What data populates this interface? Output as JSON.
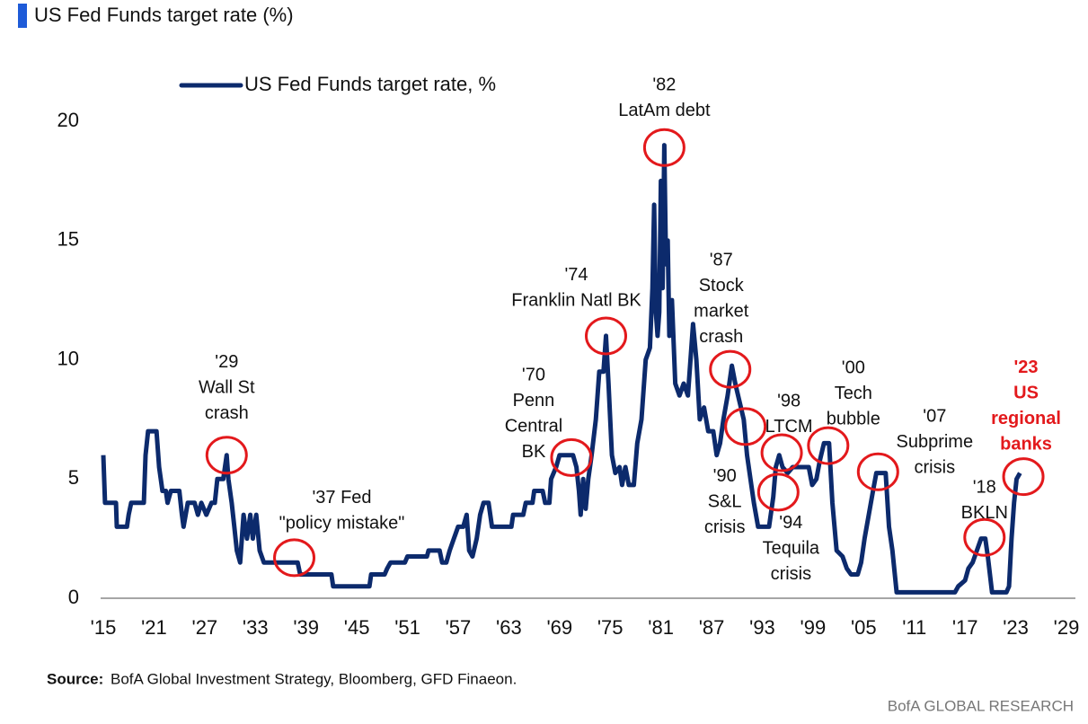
{
  "title": "US Fed Funds target rate (%)",
  "source_label": "Source:",
  "source": "BofA Global Investment Strategy, Bloomberg, GFD Finaeon.",
  "footer": "BofA GLOBAL RESEARCH",
  "chart_data": {
    "type": "line",
    "xlim": [
      1915,
      2029
    ],
    "ylim": [
      0,
      20
    ],
    "yticks": [
      0,
      5,
      10,
      15,
      20
    ],
    "xticks": [
      {
        "value": 1915,
        "label": "'15"
      },
      {
        "value": 1921,
        "label": "'21"
      },
      {
        "value": 1927,
        "label": "'27"
      },
      {
        "value": 1933,
        "label": "'33"
      },
      {
        "value": 1939,
        "label": "'39"
      },
      {
        "value": 1945,
        "label": "'45"
      },
      {
        "value": 1951,
        "label": "'51"
      },
      {
        "value": 1957,
        "label": "'57"
      },
      {
        "value": 1963,
        "label": "'63"
      },
      {
        "value": 1969,
        "label": "'69"
      },
      {
        "value": 1975,
        "label": "'75"
      },
      {
        "value": 1981,
        "label": "'81"
      },
      {
        "value": 1987,
        "label": "'87"
      },
      {
        "value": 1993,
        "label": "'93"
      },
      {
        "value": 1999,
        "label": "'99"
      },
      {
        "value": 2005,
        "label": "'05"
      },
      {
        "value": 2011,
        "label": "'11"
      },
      {
        "value": 2017,
        "label": "'17"
      },
      {
        "value": 2023,
        "label": "'23"
      },
      {
        "value": 2029,
        "label": "'29"
      }
    ],
    "x": [
      1915,
      1915.2,
      1916.5,
      1916.6,
      1917.8,
      1918,
      1918.3,
      1919.8,
      1920,
      1920.3,
      1921.3,
      1921.6,
      1922,
      1922.4,
      1922.6,
      1923,
      1924,
      1924.3,
      1924.5,
      1925,
      1925.8,
      1926.2,
      1926.6,
      1927.2,
      1927.8,
      1928.2,
      1928.5,
      1929.2,
      1929.6,
      1929.8,
      1930.2,
      1930.5,
      1930.8,
      1931.2,
      1931.6,
      1932,
      1932.4,
      1932.7,
      1933.1,
      1933.5,
      1934,
      1938,
      1938.3,
      1942,
      1942.2,
      1946.5,
      1946.7,
      1948.3,
      1948.6,
      1949,
      1950.7,
      1951,
      1953.3,
      1953.5,
      1954.8,
      1955.1,
      1955.6,
      1956,
      1956.5,
      1957,
      1957.6,
      1958,
      1958.3,
      1958.7,
      1959.2,
      1959.6,
      1960,
      1960.6,
      1961,
      1963.3,
      1963.5,
      1964.7,
      1965,
      1965.8,
      1966,
      1967,
      1967.3,
      1967.8,
      1968,
      1968.6,
      1969,
      1970.6,
      1971,
      1971.3,
      1971.5,
      1971.8,
      1972.1,
      1972.4,
      1972.8,
      1973.3,
      1973.7,
      1974.2,
      1974.5,
      1974.8,
      1975.2,
      1975.6,
      1976.1,
      1976.4,
      1976.8,
      1977.2,
      1977.8,
      1978.2,
      1978.7,
      1979.2,
      1979.7,
      1980,
      1980.2,
      1980.4,
      1980.6,
      1980.8,
      1981,
      1981.2,
      1981.4,
      1981.6,
      1981.8,
      1982,
      1982.3,
      1982.7,
      1983.2,
      1983.7,
      1984.2,
      1984.8,
      1985.2,
      1985.6,
      1986.1,
      1986.6,
      1987.2,
      1987.6,
      1988,
      1988.4,
      1988.9,
      1989.4,
      1989.8,
      1990.3,
      1990.8,
      1991.2,
      1991.6,
      1992,
      1992.5,
      1993.8,
      1994.3,
      1994.6,
      1995,
      1995.4,
      1996,
      1996.6,
      1998.5,
      1998.9,
      1999.4,
      1999.8,
      2000.3,
      2000.9,
      2001.3,
      2001.8,
      2002.5,
      2003,
      2003.5,
      2004.3,
      2004.7,
      2005.1,
      2005.6,
      2006.1,
      2006.5,
      2007.6,
      2008,
      2008.4,
      2008.9,
      2015.8,
      2016.2,
      2017,
      2017.4,
      2017.9,
      2018.4,
      2018.9,
      2019.4,
      2019.7,
      2020.2,
      2021.9,
      2022.2,
      2022.5,
      2022.8,
      2023.1,
      2023.5
    ],
    "series": [
      {
        "name": "US Fed Funds target rate, %",
        "color": "#0c2a6c",
        "values": [
          6,
          4,
          4,
          3,
          3,
          3.5,
          4,
          4,
          6,
          7,
          7,
          5.5,
          4.5,
          4.5,
          4,
          4.5,
          4.5,
          3.5,
          3,
          4,
          4,
          3.5,
          4,
          3.5,
          4,
          4,
          5,
          5,
          6,
          5,
          4,
          3,
          2,
          1.5,
          3.5,
          2.5,
          3.5,
          2.5,
          3.5,
          2,
          1.5,
          1.5,
          1,
          1,
          0.5,
          0.5,
          1,
          1,
          1.25,
          1.5,
          1.5,
          1.75,
          1.75,
          2,
          2,
          1.5,
          1.5,
          2,
          2.5,
          3,
          3,
          3.5,
          2,
          1.75,
          2.5,
          3.5,
          4,
          4,
          3,
          3,
          3.5,
          3.5,
          4,
          4,
          4.5,
          4.5,
          4,
          4,
          5,
          5.5,
          6,
          6,
          5.5,
          4.5,
          3.5,
          5,
          3.75,
          5,
          6,
          7.5,
          9.5,
          9.5,
          11,
          9,
          6,
          5.25,
          5.5,
          4.75,
          5.5,
          4.75,
          4.75,
          6.5,
          7.5,
          10,
          10.5,
          13,
          16.5,
          12,
          11,
          12,
          17.5,
          13,
          19,
          14,
          15,
          11,
          12.5,
          9,
          8.5,
          9,
          8.5,
          11.5,
          10,
          7.5,
          8,
          7,
          7,
          6,
          6.5,
          7.5,
          8.5,
          9.75,
          9,
          8.25,
          7.5,
          6,
          5,
          4,
          3,
          3,
          4.25,
          5.5,
          6,
          5.5,
          5.25,
          5.5,
          5.5,
          4.75,
          5,
          5.75,
          6.5,
          6.5,
          4,
          2,
          1.75,
          1.25,
          1,
          1,
          1.5,
          2.5,
          3.5,
          4.5,
          5.25,
          5.25,
          3,
          2,
          0.25,
          0.25,
          0.5,
          0.75,
          1.25,
          1.5,
          2,
          2.5,
          2.5,
          1.75,
          0.25,
          0.25,
          0.5,
          2.5,
          4,
          5,
          5.25
        ]
      }
    ],
    "annotations": [
      {
        "text": [
          "'29",
          "Wall St",
          "crash"
        ],
        "x": 1929.6,
        "y": 6
      },
      {
        "text": [
          "'37 Fed",
          "\"policy mistake\""
        ],
        "x": 1937.6,
        "y": 1.7
      },
      {
        "text": [
          "'70",
          "Penn",
          "Central",
          "BK"
        ],
        "x": 1970.4,
        "y": 5.9
      },
      {
        "text": [
          "'74",
          "Franklin Natl BK"
        ],
        "x": 1974.5,
        "y": 11
      },
      {
        "text": [
          "'82",
          "LatAm debt"
        ],
        "x": 1981.4,
        "y": 18.9
      },
      {
        "text": [
          "'87",
          "Stock",
          "market",
          "crash"
        ],
        "x": 1989.2,
        "y": 9.6
      },
      {
        "text": [
          "'90",
          "S&L",
          "crisis"
        ],
        "x": 1991,
        "y": 7.2
      },
      {
        "text": [
          "'94",
          "Tequila",
          "crisis"
        ],
        "x": 1994.9,
        "y": 4.45
      },
      {
        "text": [
          "'98",
          "LTCM"
        ],
        "x": 1995.3,
        "y": 6.1
      },
      {
        "text": [
          "'00",
          "Tech",
          "bubble"
        ],
        "x": 2000.8,
        "y": 6.4
      },
      {
        "text": [
          "'07",
          "Subprime",
          "crisis"
        ],
        "x": 2006.7,
        "y": 5.3
      },
      {
        "text": [
          "'18",
          "BKLN"
        ],
        "x": 2019.3,
        "y": 2.55
      },
      {
        "text": [
          "'23",
          "US",
          "regional",
          "banks"
        ],
        "x": 2023.9,
        "y": 5.1,
        "color": "#e3191c"
      }
    ]
  }
}
